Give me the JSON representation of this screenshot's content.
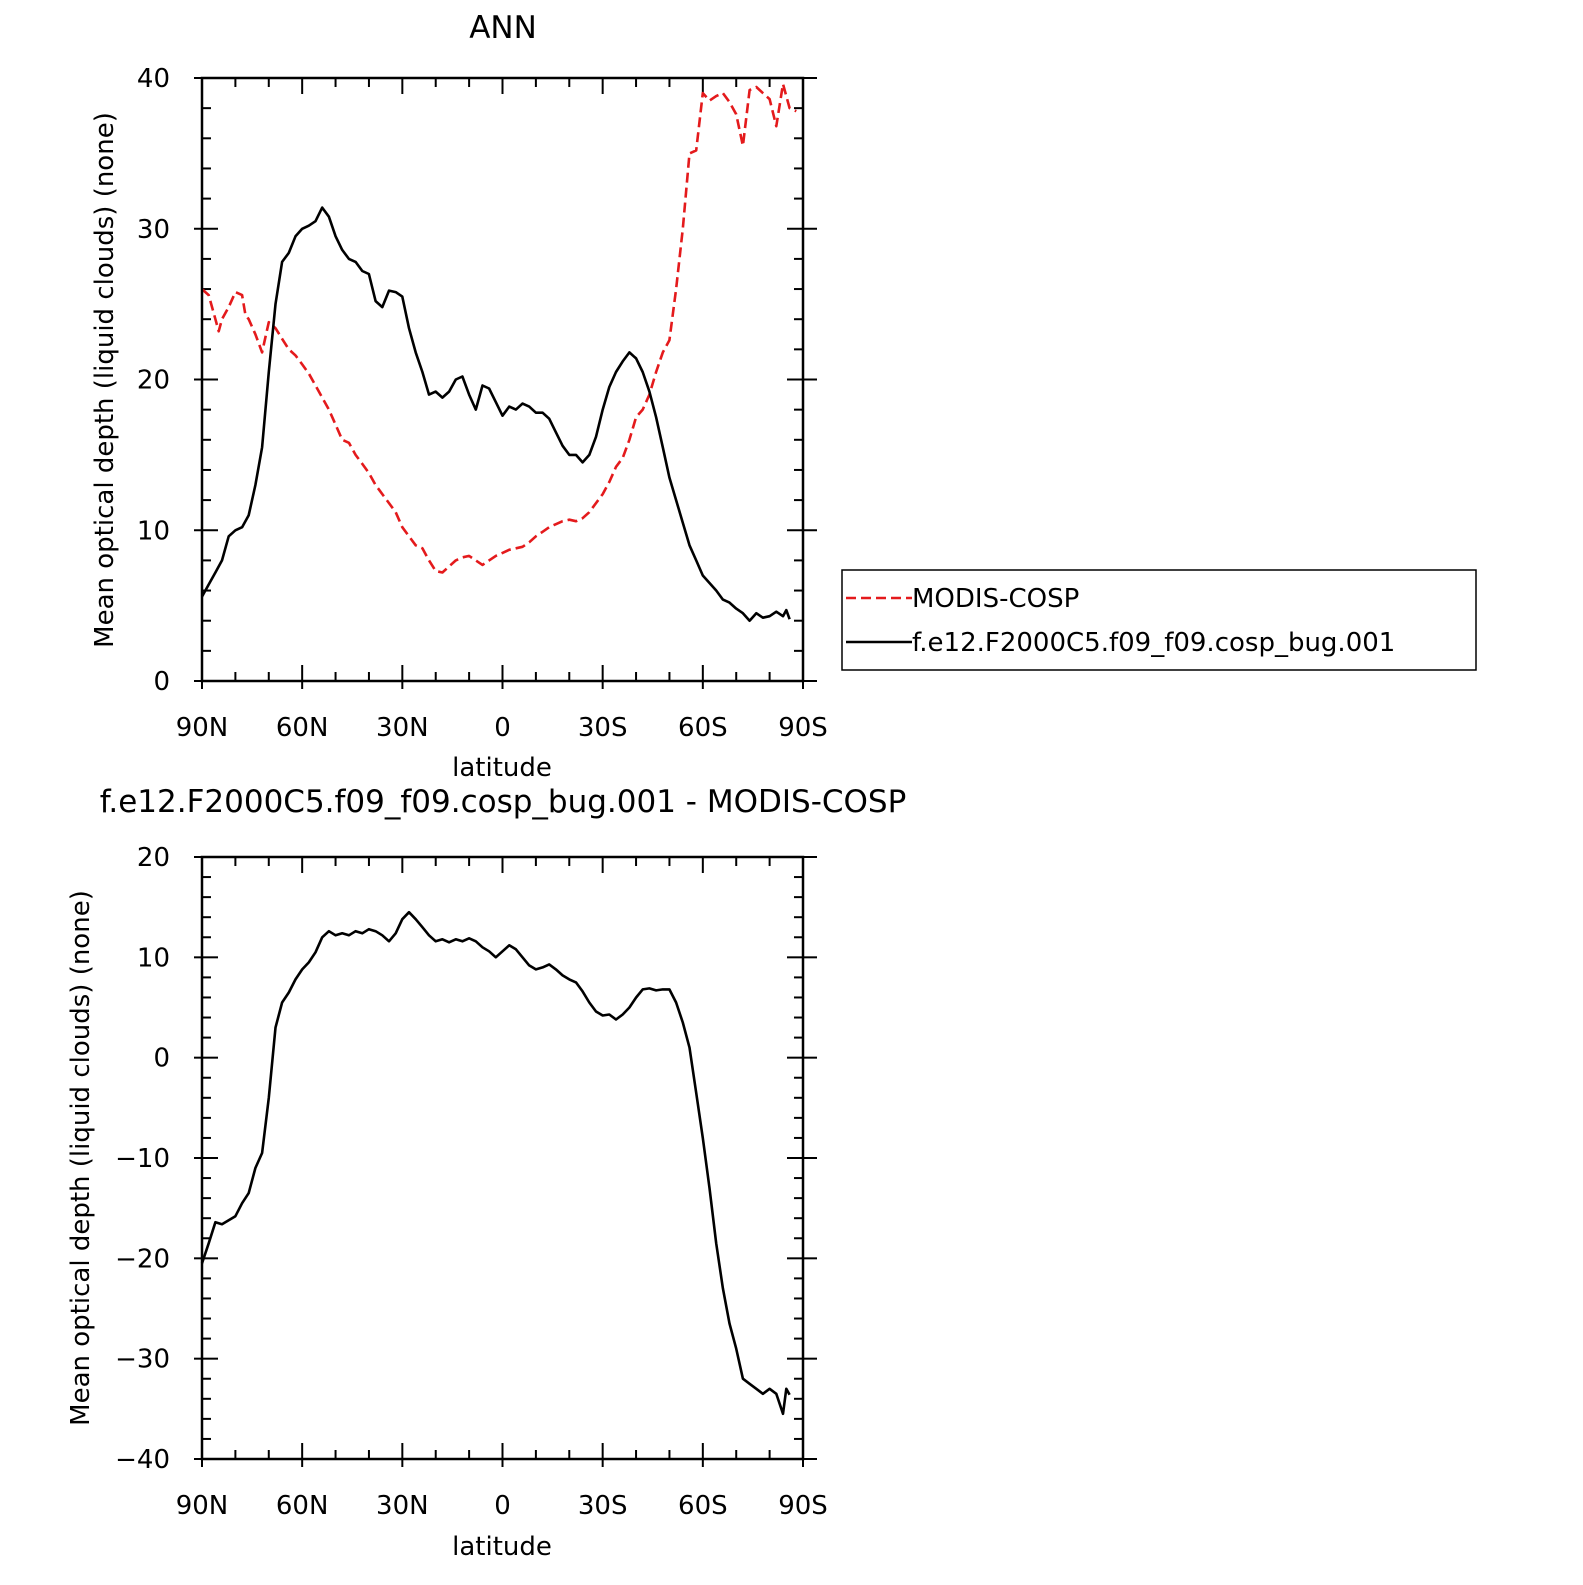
{
  "chart_data": [
    {
      "type": "line",
      "title": "ANN",
      "xlabel": "latitude",
      "ylabel": "Mean optical depth (liquid clouds) (none)",
      "xlim": [
        90,
        -90
      ],
      "ylim": [
        0,
        40
      ],
      "x_ticks": [
        {
          "value": 90,
          "label": "90N"
        },
        {
          "value": 60,
          "label": "60N"
        },
        {
          "value": 30,
          "label": "30N"
        },
        {
          "value": 0,
          "label": "0"
        },
        {
          "value": -30,
          "label": "30S"
        },
        {
          "value": -60,
          "label": "60S"
        },
        {
          "value": -90,
          "label": "90S"
        }
      ],
      "y_ticks": [
        {
          "value": 0,
          "label": "0"
        },
        {
          "value": 10,
          "label": "10"
        },
        {
          "value": 20,
          "label": "20"
        },
        {
          "value": 30,
          "label": "30"
        },
        {
          "value": 40,
          "label": "40"
        }
      ],
      "legend_placement": "right, outside plot",
      "series": [
        {
          "name": "MODIS-COSP",
          "color": "#e41a1c",
          "dash": "dashed",
          "x": [
            90,
            88,
            86,
            85,
            84,
            82,
            80,
            78,
            77,
            76,
            74,
            72,
            71,
            70,
            68,
            66,
            64,
            62,
            60,
            58,
            56,
            54,
            52,
            50,
            48,
            46,
            44,
            42,
            40,
            38,
            36,
            34,
            32,
            30,
            28,
            26,
            24,
            22,
            20,
            18,
            16,
            14,
            12,
            10,
            8,
            6,
            4,
            2,
            0,
            -2,
            -4,
            -6,
            -8,
            -10,
            -12,
            -14,
            -16,
            -18,
            -20,
            -22,
            -24,
            -26,
            -28,
            -30,
            -32,
            -34,
            -36,
            -38,
            -40,
            -42,
            -44,
            -46,
            -48,
            -50,
            -52,
            -54,
            -56,
            -58,
            -60,
            -62,
            -64,
            -66,
            -68,
            -70,
            -72,
            -74,
            -76,
            -78,
            -80,
            -82,
            -84,
            -86,
            -88
          ],
          "y": [
            26.0,
            25.6,
            24.0,
            23.2,
            24.0,
            24.8,
            25.8,
            25.6,
            24.3,
            24.0,
            23.0,
            21.8,
            22.8,
            23.8,
            23.4,
            22.7,
            22.0,
            21.6,
            21.0,
            20.4,
            19.6,
            18.8,
            18.0,
            17.0,
            16.0,
            15.8,
            15.0,
            14.4,
            13.8,
            13.0,
            12.4,
            11.8,
            11.2,
            10.2,
            9.6,
            9.0,
            8.8,
            8.0,
            7.3,
            7.2,
            7.6,
            8.0,
            8.2,
            8.3,
            8.0,
            7.7,
            8.0,
            8.3,
            8.5,
            8.7,
            8.8,
            8.9,
            9.2,
            9.6,
            9.9,
            10.2,
            10.4,
            10.6,
            10.7,
            10.6,
            10.8,
            11.2,
            11.8,
            12.4,
            13.2,
            14.2,
            14.8,
            16.0,
            17.5,
            18.0,
            19.0,
            20.5,
            21.8,
            22.6,
            26.0,
            30.0,
            35.0,
            35.2,
            39.0,
            38.5,
            38.8,
            39.0,
            38.4,
            37.6,
            35.5,
            39.2,
            39.4,
            39.0,
            38.6,
            36.8,
            39.6,
            38.0,
            37.8
          ]
        },
        {
          "name": "f.e12.F2000C5.f09_f09.cosp_bug.001",
          "color": "#000000",
          "dash": "solid",
          "x": [
            90,
            88,
            86,
            84,
            82,
            80,
            78,
            76,
            74,
            72,
            70,
            68,
            66,
            64,
            62,
            60,
            58,
            56,
            54,
            52,
            50,
            48,
            46,
            44,
            42,
            40,
            38,
            36,
            34,
            32,
            30,
            28,
            26,
            24,
            22,
            20,
            18,
            16,
            14,
            12,
            10,
            8,
            6,
            4,
            2,
            0,
            -2,
            -4,
            -6,
            -8,
            -10,
            -12,
            -14,
            -16,
            -18,
            -20,
            -22,
            -24,
            -26,
            -28,
            -30,
            -32,
            -34,
            -36,
            -38,
            -40,
            -42,
            -44,
            -46,
            -48,
            -50,
            -52,
            -54,
            -56,
            -58,
            -60,
            -62,
            -64,
            -66,
            -68,
            -70,
            -72,
            -74,
            -76,
            -78,
            -80,
            -82,
            -84,
            -85,
            -86
          ],
          "y": [
            5.6,
            6.4,
            7.2,
            8.0,
            9.6,
            10.0,
            10.2,
            11.0,
            13.0,
            15.5,
            20.5,
            25.0,
            27.8,
            28.4,
            29.5,
            30.0,
            30.2,
            30.5,
            31.4,
            30.8,
            29.5,
            28.6,
            28.0,
            27.8,
            27.2,
            27.0,
            25.2,
            24.8,
            25.9,
            25.8,
            25.5,
            23.4,
            21.8,
            20.5,
            19.0,
            19.2,
            18.8,
            19.2,
            20.0,
            20.2,
            19.0,
            18.0,
            19.6,
            19.4,
            18.5,
            17.6,
            18.2,
            18.0,
            18.4,
            18.2,
            17.8,
            17.8,
            17.4,
            16.5,
            15.6,
            15.0,
            15.0,
            14.5,
            15.0,
            16.2,
            18.0,
            19.5,
            20.5,
            21.2,
            21.8,
            21.4,
            20.5,
            19.2,
            17.5,
            15.5,
            13.5,
            12.0,
            10.5,
            9.0,
            8.0,
            7.0,
            6.5,
            6.0,
            5.4,
            5.2,
            4.8,
            4.5,
            4.0,
            4.5,
            4.2,
            4.3,
            4.6,
            4.3,
            4.7,
            4.1
          ]
        }
      ]
    },
    {
      "type": "line",
      "title": "f.e12.F2000C5.f09_f09.cosp_bug.001 - MODIS-COSP",
      "xlabel": "latitude",
      "ylabel": "Mean optical depth (liquid clouds) (none)",
      "xlim": [
        90,
        -90
      ],
      "ylim": [
        -40,
        20
      ],
      "x_ticks": [
        {
          "value": 90,
          "label": "90N"
        },
        {
          "value": 60,
          "label": "60N"
        },
        {
          "value": 30,
          "label": "30N"
        },
        {
          "value": 0,
          "label": "0"
        },
        {
          "value": -30,
          "label": "30S"
        },
        {
          "value": -60,
          "label": "60S"
        },
        {
          "value": -90,
          "label": "90S"
        }
      ],
      "y_ticks": [
        {
          "value": -40,
          "label": "−40"
        },
        {
          "value": -30,
          "label": "−30"
        },
        {
          "value": -20,
          "label": "−20"
        },
        {
          "value": -10,
          "label": "−10"
        },
        {
          "value": 0,
          "label": "0"
        },
        {
          "value": 10,
          "label": "10"
        },
        {
          "value": 20,
          "label": "20"
        }
      ],
      "series": [
        {
          "color": "#000000",
          "dash": "solid",
          "x": [
            90,
            88,
            86,
            84,
            82,
            80,
            78,
            76,
            74,
            72,
            70,
            68,
            66,
            64,
            62,
            60,
            58,
            56,
            54,
            52,
            50,
            48,
            46,
            44,
            42,
            40,
            38,
            36,
            34,
            32,
            30,
            28,
            26,
            24,
            22,
            20,
            18,
            16,
            14,
            12,
            10,
            8,
            6,
            4,
            2,
            0,
            -2,
            -4,
            -6,
            -8,
            -10,
            -12,
            -14,
            -16,
            -18,
            -20,
            -22,
            -24,
            -26,
            -28,
            -30,
            -32,
            -34,
            -36,
            -38,
            -40,
            -42,
            -44,
            -46,
            -48,
            -50,
            -52,
            -54,
            -56,
            -58,
            -60,
            -62,
            -64,
            -66,
            -68,
            -70,
            -72,
            -74,
            -76,
            -78,
            -80,
            -82,
            -84,
            -85,
            -86
          ],
          "y": [
            -20.5,
            -18.5,
            -16.4,
            -16.6,
            -16.2,
            -15.8,
            -14.5,
            -13.5,
            -11.0,
            -9.5,
            -4.0,
            3.0,
            5.5,
            6.5,
            7.8,
            8.8,
            9.5,
            10.5,
            12.0,
            12.6,
            12.2,
            12.4,
            12.2,
            12.6,
            12.4,
            12.8,
            12.6,
            12.2,
            11.6,
            12.4,
            13.8,
            14.5,
            13.8,
            13.0,
            12.2,
            11.6,
            11.8,
            11.5,
            11.8,
            11.6,
            11.9,
            11.6,
            11.0,
            10.6,
            10.0,
            10.6,
            11.2,
            10.8,
            10.0,
            9.2,
            8.8,
            9.0,
            9.3,
            8.8,
            8.2,
            7.8,
            7.5,
            6.6,
            5.5,
            4.6,
            4.2,
            4.3,
            3.8,
            4.3,
            5.0,
            6.0,
            6.8,
            6.9,
            6.7,
            6.8,
            6.8,
            5.5,
            3.5,
            1.0,
            -3.5,
            -8.0,
            -13.0,
            -18.5,
            -23.0,
            -26.5,
            -29.0,
            -32.0,
            -32.5,
            -33.0,
            -33.5,
            -33.0,
            -33.5,
            -35.5,
            -33.0,
            -33.6
          ]
        }
      ]
    }
  ]
}
